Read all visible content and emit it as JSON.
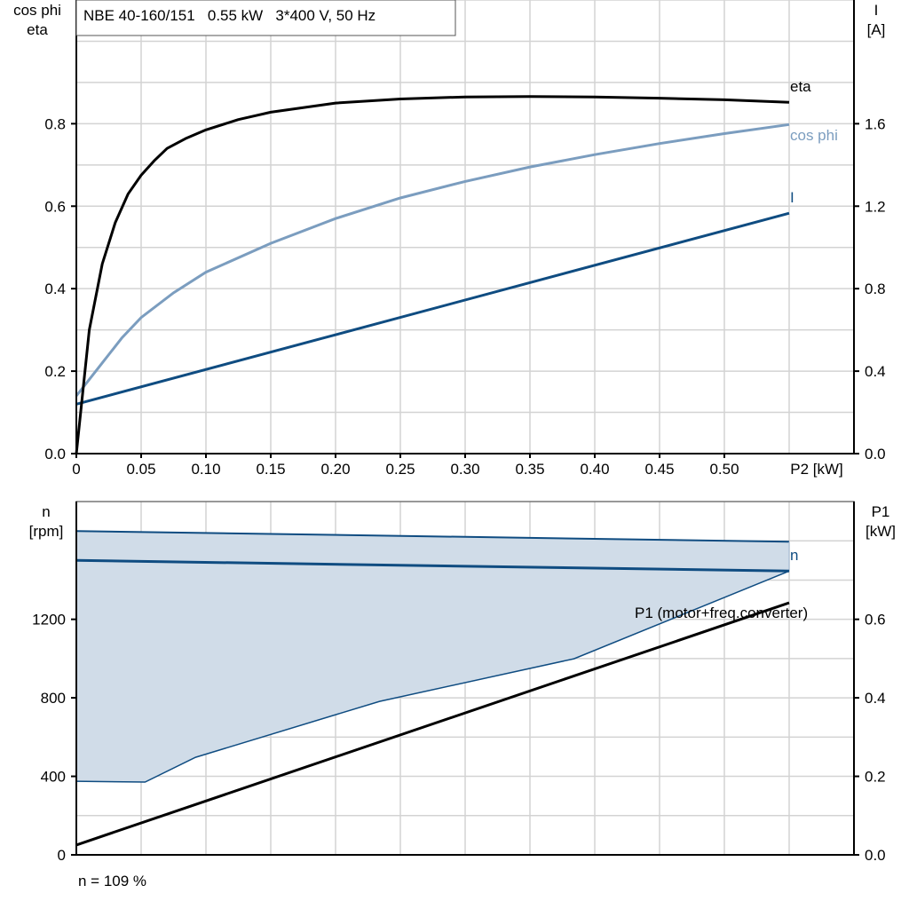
{
  "header": {
    "title": "NBE 40-160/151   0.55 kW   3*400 V, 50 Hz"
  },
  "footer": {
    "speed_note": "n = 109 %"
  },
  "colors": {
    "eta": "#000000",
    "cos_phi": "#7b9dbf",
    "current": "#0f4c81",
    "speed": "#0f4c81",
    "speed_range_fill": "#d0dce8",
    "p1": "#000000",
    "grid": "#d3d3d3"
  },
  "chart_data": [
    {
      "type": "line",
      "xlabel": "P2 [kW]",
      "ylabel_left": [
        "cos phi",
        "eta"
      ],
      "ylabel_right": [
        "I",
        "[A]"
      ],
      "xlim": [
        0,
        0.6
      ],
      "ylim_left": [
        0,
        1.1
      ],
      "ylim_right": [
        0,
        2.2
      ],
      "x_ticks": [
        "0",
        "0.05",
        "0.10",
        "0.15",
        "0.20",
        "0.25",
        "0.30",
        "0.35",
        "0.40",
        "0.45",
        "0.50"
      ],
      "y_ticks_left": [
        "0.0",
        "0.2",
        "0.4",
        "0.6",
        "0.8"
      ],
      "y_ticks_right": [
        "0.0",
        "0.4",
        "0.8",
        "1.2",
        "1.6"
      ],
      "grid": true,
      "series": [
        {
          "name": "eta",
          "axis": "left",
          "x": [
            0,
            0.01,
            0.02,
            0.03,
            0.04,
            0.05,
            0.06,
            0.07,
            0.085,
            0.1,
            0.125,
            0.15,
            0.2,
            0.25,
            0.3,
            0.35,
            0.4,
            0.45,
            0.5,
            0.55
          ],
          "y": [
            0,
            0.3,
            0.46,
            0.56,
            0.63,
            0.675,
            0.71,
            0.74,
            0.765,
            0.785,
            0.81,
            0.828,
            0.85,
            0.86,
            0.865,
            0.866,
            0.865,
            0.862,
            0.858,
            0.852
          ]
        },
        {
          "name": "cos phi",
          "axis": "left",
          "x": [
            0,
            0.01,
            0.02,
            0.035,
            0.05,
            0.075,
            0.1,
            0.15,
            0.2,
            0.25,
            0.3,
            0.35,
            0.4,
            0.45,
            0.5,
            0.55
          ],
          "y": [
            0.14,
            0.18,
            0.22,
            0.28,
            0.33,
            0.39,
            0.44,
            0.51,
            0.57,
            0.62,
            0.66,
            0.695,
            0.725,
            0.752,
            0.776,
            0.798
          ]
        },
        {
          "name": "I",
          "axis": "right",
          "x": [
            0,
            0.55
          ],
          "y": [
            0.24,
            1.166
          ]
        }
      ]
    },
    {
      "type": "area",
      "xlim": [
        0,
        0.6
      ],
      "ylabel_left": [
        "n",
        "[rpm]"
      ],
      "ylabel_right": [
        "P1",
        "[kW]"
      ],
      "ylim_left": [
        0,
        1800
      ],
      "ylim_right": [
        0,
        0.9
      ],
      "y_ticks_left": [
        "0",
        "400",
        "800",
        "1200"
      ],
      "y_ticks_right": [
        "0.0",
        "0.2",
        "0.4",
        "0.6"
      ],
      "grid": true,
      "series": [
        {
          "name": "n",
          "axis": "left",
          "x": [
            0,
            0.55
          ],
          "y": [
            1500,
            1446
          ]
        },
        {
          "name": "n range upper",
          "axis": "left",
          "x": [
            0,
            0.55
          ],
          "y": [
            1650,
            1595
          ]
        },
        {
          "name": "n range lower",
          "axis": "left",
          "x": [
            0,
            0.053,
            0.092,
            0.234,
            0.384,
            0.55
          ],
          "y": [
            375,
            371,
            497,
            782,
            999,
            1446
          ]
        },
        {
          "name": "P1 (motor+freq.converter)",
          "axis": "right",
          "x": [
            0,
            0.55
          ],
          "y": [
            0.025,
            0.642
          ]
        }
      ]
    }
  ]
}
